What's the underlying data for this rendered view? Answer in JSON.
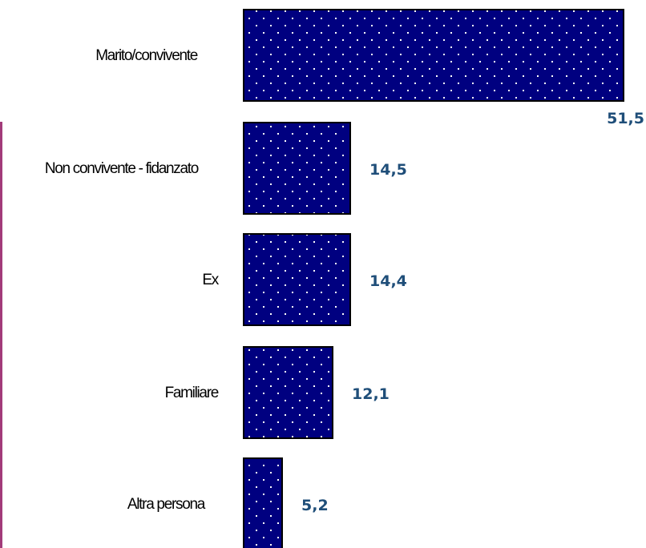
{
  "chart_data": {
    "type": "bar",
    "orientation": "horizontal",
    "categories": [
      "Marito/convivente",
      "Non convivente - fidanzato",
      "Ex",
      "Familiare",
      "Altra persona"
    ],
    "values": [
      51.5,
      14.5,
      14.4,
      12.1,
      5.2
    ],
    "value_labels": [
      "51,5",
      "14,5",
      "14,4",
      "12,1",
      "5,2"
    ],
    "title": "",
    "xlabel": "",
    "ylabel": "",
    "xlim": [
      0,
      51.5
    ],
    "grid": false,
    "legend": "none",
    "bar_color": "#000080",
    "bar_pattern": "white dots",
    "value_label_color": "#1f4e79",
    "accent_rule_color": "#a23b7a"
  }
}
